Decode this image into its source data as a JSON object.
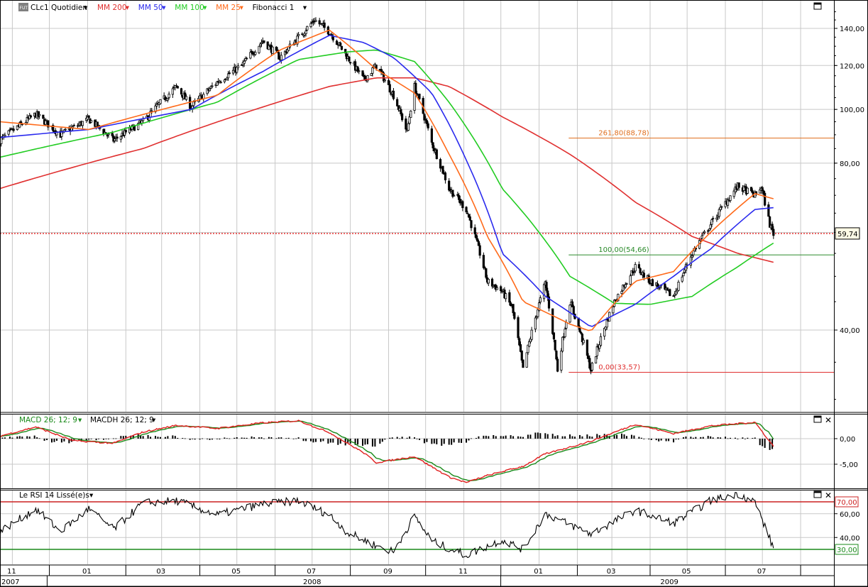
{
  "header": {
    "symbol_badge": "FUT",
    "symbol_label": "CLc1 Quotidien",
    "legend": [
      {
        "label": "MM 200",
        "color": "#e03030"
      },
      {
        "label": "MM 50",
        "color": "#2a2aee"
      },
      {
        "label": "MM 100",
        "color": "#22cc22"
      },
      {
        "label": "MM 25",
        "color": "#ff6a1a"
      },
      {
        "label": "Fibonacci 1",
        "color": "#000000"
      }
    ]
  },
  "macd_panel": {
    "label_1": "MACD  26; 12; 9",
    "label_2": "MACDH 26; 12; 9",
    "y_ticks": [
      "0,00",
      "-5,00"
    ]
  },
  "rsi_panel": {
    "label": "Le RSI 14 Lissé(e)s",
    "y_ticks": [
      "60,00",
      "40,00"
    ],
    "overbought_label": "70,00",
    "oversold_label": "30,00"
  },
  "price_panel": {
    "y_ticks": [
      "140,00",
      "120,00",
      "100,00",
      "80,00",
      "40,00"
    ],
    "last_price_label": "59,74",
    "fib_levels": [
      {
        "label": "261,80(88,78)",
        "value": 88.78,
        "color": "#e07020"
      },
      {
        "label": "100,00(54,66)",
        "value": 54.66,
        "color": "#2a8a2a"
      },
      {
        "label": "0,00(33,57)",
        "value": 33.57,
        "color": "#e03030"
      }
    ]
  },
  "x_axis": {
    "months": [
      "11",
      "01",
      "03",
      "05",
      "07",
      "09",
      "11",
      "01",
      "03",
      "05",
      "07"
    ],
    "years": [
      "2007",
      "2008",
      "2009"
    ]
  },
  "colors": {
    "ma200": "#e03030",
    "ma100": "#22cc22",
    "ma50": "#2a2aee",
    "ma25": "#ff6a1a",
    "macd": "#e02020",
    "signal": "#1a8a1a",
    "rsi_over": "#cc2020",
    "rsi_under": "#1a8a1a"
  },
  "chart_data": {
    "type": "line",
    "series": [
      {
        "name": "CLc1 Quotidien",
        "points": [
          [
            "2007-10-22",
            88
          ],
          [
            "2007-11-20",
            98
          ],
          [
            "2007-12-10",
            90
          ],
          [
            "2008-01-02",
            96
          ],
          [
            "2008-01-22",
            88
          ],
          [
            "2008-02-15",
            95
          ],
          [
            "2008-03-13",
            110
          ],
          [
            "2008-03-25",
            101
          ],
          [
            "2008-04-15",
            112
          ],
          [
            "2008-05-05",
            120
          ],
          [
            "2008-05-22",
            133
          ],
          [
            "2008-06-05",
            124
          ],
          [
            "2008-06-20",
            135
          ],
          [
            "2008-07-03",
            145
          ],
          [
            "2008-07-15",
            138
          ],
          [
            "2008-07-30",
            124
          ],
          [
            "2008-08-12",
            113
          ],
          [
            "2008-08-22",
            120
          ],
          [
            "2008-09-05",
            106
          ],
          [
            "2008-09-16",
            91
          ],
          [
            "2008-09-22",
            110
          ],
          [
            "2008-10-06",
            87
          ],
          [
            "2008-10-20",
            72
          ],
          [
            "2008-11-03",
            66
          ],
          [
            "2008-11-20",
            49
          ],
          [
            "2008-12-02",
            47
          ],
          [
            "2008-12-10",
            44
          ],
          [
            "2008-12-19",
            33.9
          ],
          [
            "2009-01-06",
            48.6
          ],
          [
            "2009-01-16",
            33.9
          ],
          [
            "2009-01-26",
            45
          ],
          [
            "2009-02-12",
            33.9
          ],
          [
            "2009-03-03",
            45
          ],
          [
            "2009-03-20",
            52
          ],
          [
            "2009-04-01",
            49
          ],
          [
            "2009-04-20",
            46
          ],
          [
            "2009-05-05",
            55
          ],
          [
            "2009-05-20",
            62
          ],
          [
            "2009-06-11",
            72.7
          ],
          [
            "2009-06-25",
            70
          ],
          [
            "2009-06-30",
            72.5
          ],
          [
            "2009-07-07",
            62
          ],
          [
            "2009-07-10",
            59.74
          ]
        ]
      },
      {
        "name": "MM 200",
        "points": [
          [
            "2007-10-22",
            72
          ],
          [
            "2008-02-15",
            85
          ],
          [
            "2008-05-22",
            101
          ],
          [
            "2008-07-15",
            110
          ],
          [
            "2008-08-22",
            114
          ],
          [
            "2008-09-22",
            114
          ],
          [
            "2008-10-20",
            110
          ],
          [
            "2008-12-02",
            97
          ],
          [
            "2009-01-26",
            83
          ],
          [
            "2009-03-20",
            68
          ],
          [
            "2009-05-05",
            59
          ],
          [
            "2009-06-11",
            55
          ],
          [
            "2009-07-10",
            53
          ]
        ]
      },
      {
        "name": "MM 100",
        "points": [
          [
            "2007-10-22",
            82
          ],
          [
            "2008-01-22",
            91
          ],
          [
            "2008-04-15",
            103
          ],
          [
            "2008-06-20",
            123
          ],
          [
            "2008-07-30",
            127
          ],
          [
            "2008-08-22",
            128
          ],
          [
            "2008-09-22",
            122
          ],
          [
            "2008-10-20",
            103
          ],
          [
            "2008-12-02",
            72
          ],
          [
            "2009-01-26",
            50
          ],
          [
            "2009-03-03",
            44.7
          ],
          [
            "2009-04-01",
            44.5
          ],
          [
            "2009-05-05",
            46
          ],
          [
            "2009-06-11",
            52
          ],
          [
            "2009-07-10",
            57.4
          ]
        ]
      },
      {
        "name": "MM 50",
        "points": [
          [
            "2007-10-22",
            89
          ],
          [
            "2008-01-02",
            92
          ],
          [
            "2008-03-25",
            100
          ],
          [
            "2008-05-22",
            117
          ],
          [
            "2008-07-15",
            136
          ],
          [
            "2008-08-12",
            132
          ],
          [
            "2008-09-05",
            124
          ],
          [
            "2008-10-06",
            107
          ],
          [
            "2008-11-03",
            81
          ],
          [
            "2008-12-02",
            55
          ],
          [
            "2009-01-06",
            46
          ],
          [
            "2009-02-12",
            40.5
          ],
          [
            "2009-03-20",
            44.5
          ],
          [
            "2009-04-20",
            50
          ],
          [
            "2009-05-20",
            56
          ],
          [
            "2009-06-25",
            66
          ],
          [
            "2009-07-10",
            66.5
          ]
        ]
      },
      {
        "name": "MM 25",
        "points": [
          [
            "2007-10-22",
            95
          ],
          [
            "2008-01-02",
            92
          ],
          [
            "2008-04-15",
            106
          ],
          [
            "2008-06-05",
            128
          ],
          [
            "2008-07-15",
            139
          ],
          [
            "2008-08-22",
            118
          ],
          [
            "2008-09-22",
            107
          ],
          [
            "2008-10-20",
            83
          ],
          [
            "2008-11-20",
            59
          ],
          [
            "2008-12-19",
            45
          ],
          [
            "2009-01-26",
            41
          ],
          [
            "2009-02-12",
            39.8
          ],
          [
            "2009-03-20",
            49
          ],
          [
            "2009-04-20",
            51
          ],
          [
            "2009-05-20",
            60
          ],
          [
            "2009-06-25",
            70.5
          ],
          [
            "2009-07-10",
            69
          ]
        ]
      }
    ],
    "hlines": [
      {
        "label": "261,80(88,78)",
        "value": 88.78
      },
      {
        "label": "100,00(54,66)",
        "value": 54.66
      },
      {
        "label": "0,00(33,57)",
        "value": 33.57
      },
      {
        "label": "59,74",
        "value": 59.74
      }
    ],
    "y_scale": "log",
    "ylim": [
      27,
      150
    ],
    "xlim": [
      "2007-10-22",
      "2009-08-28"
    ],
    "macd": {
      "name": "MACD  26; 12; 9",
      "ylim": [
        -9,
        4.5
      ],
      "points": [
        [
          "2007-10-22",
          0.5
        ],
        [
          "2007-11-20",
          2.3
        ],
        [
          "2007-12-20",
          -0.4
        ],
        [
          "2008-01-22",
          -0.9
        ],
        [
          "2008-02-15",
          1.3
        ],
        [
          "2008-03-13",
          2.6
        ],
        [
          "2008-04-15",
          2.0
        ],
        [
          "2008-05-22",
          3.1
        ],
        [
          "2008-06-20",
          3.5
        ],
        [
          "2008-07-15",
          1.2
        ],
        [
          "2008-08-12",
          -2.8
        ],
        [
          "2008-08-22",
          -4.7
        ],
        [
          "2008-09-22",
          -3.5
        ],
        [
          "2008-10-20",
          -7.5
        ],
        [
          "2008-11-03",
          -8.6
        ],
        [
          "2008-11-20",
          -7.2
        ],
        [
          "2008-12-19",
          -5.4
        ],
        [
          "2009-01-06",
          -3.0
        ],
        [
          "2009-02-12",
          -0.5
        ],
        [
          "2009-03-20",
          2.8
        ],
        [
          "2009-04-20",
          1.0
        ],
        [
          "2009-05-20",
          2.5
        ],
        [
          "2009-06-25",
          3.2
        ],
        [
          "2009-07-10",
          -1.5
        ]
      ]
    },
    "rsi": {
      "name": "Le RSI 14 Lissé(e)s",
      "ylim": [
        20,
        80
      ],
      "overbought": 70,
      "oversold": 30,
      "points": [
        [
          "2007-10-22",
          45
        ],
        [
          "2007-11-20",
          64
        ],
        [
          "2007-12-10",
          45
        ],
        [
          "2008-01-02",
          64
        ],
        [
          "2008-01-22",
          47
        ],
        [
          "2008-02-15",
          69
        ],
        [
          "2008-03-13",
          71
        ],
        [
          "2008-04-15",
          59
        ],
        [
          "2008-05-22",
          68
        ],
        [
          "2008-06-20",
          71
        ],
        [
          "2008-07-15",
          59
        ],
        [
          "2008-07-30",
          44
        ],
        [
          "2008-08-22",
          33
        ],
        [
          "2008-09-05",
          28
        ],
        [
          "2008-09-22",
          58
        ],
        [
          "2008-10-06",
          37
        ],
        [
          "2008-11-03",
          25
        ],
        [
          "2008-12-02",
          38
        ],
        [
          "2008-12-19",
          30
        ],
        [
          "2009-01-06",
          60
        ],
        [
          "2009-02-12",
          43
        ],
        [
          "2009-03-20",
          63
        ],
        [
          "2009-04-20",
          52
        ],
        [
          "2009-05-20",
          71
        ],
        [
          "2009-06-11",
          77
        ],
        [
          "2009-06-25",
          70
        ],
        [
          "2009-07-10",
          31
        ]
      ]
    }
  }
}
